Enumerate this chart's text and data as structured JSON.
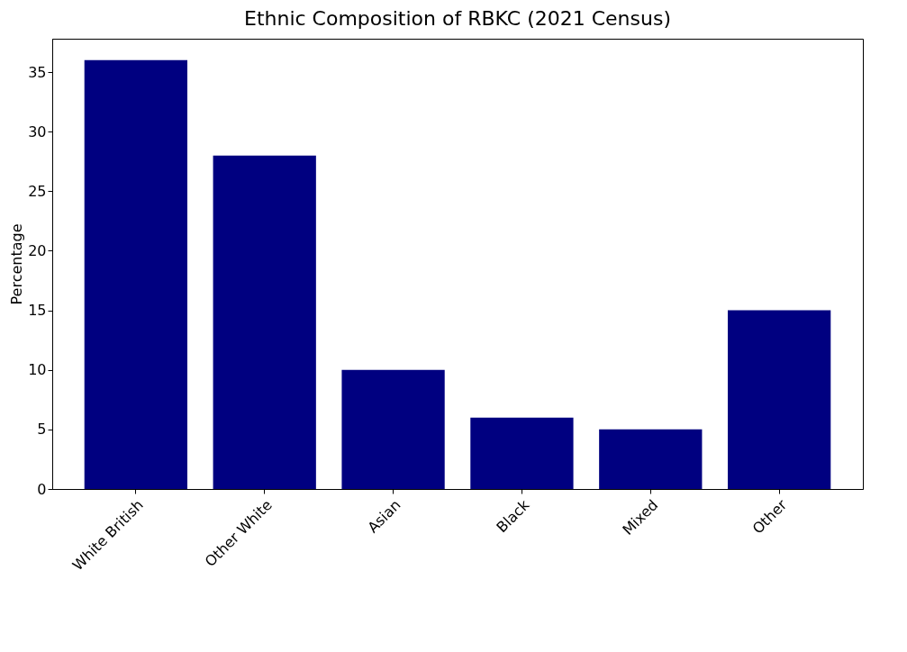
{
  "chart_data": {
    "type": "bar",
    "title": "Ethnic Composition of RBKC (2021 Census)",
    "ylabel": "Percentage",
    "categories": [
      "White British",
      "Other White",
      "Asian",
      "Black",
      "Mixed",
      "Other"
    ],
    "values": [
      36,
      28,
      10,
      6,
      5,
      15
    ],
    "color": "#000080",
    "ylim": [
      0,
      37.8
    ],
    "yticks": [
      0,
      5,
      10,
      15,
      20,
      25,
      30,
      35
    ],
    "grid": false,
    "legend": false
  }
}
